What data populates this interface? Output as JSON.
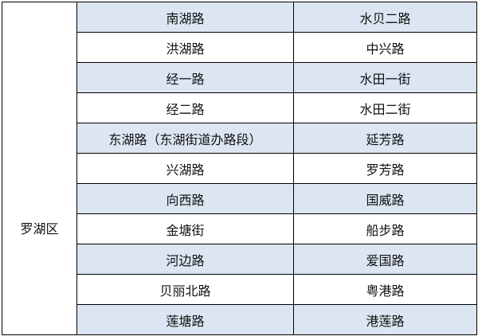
{
  "district": "罗湖区",
  "colors": {
    "alt_row": "#dce6f2",
    "border": "#000000"
  },
  "rows": [
    [
      "南湖路",
      "水贝二路"
    ],
    [
      "洪湖路",
      "中兴路"
    ],
    [
      "经一路",
      "水田一街"
    ],
    [
      "经二路",
      "水田二街"
    ],
    [
      "东湖路（东湖街道办路段）",
      "延芳路"
    ],
    [
      "兴湖路",
      "罗芳路"
    ],
    [
      "向西路",
      "国威路"
    ],
    [
      "金塘街",
      "船步路"
    ],
    [
      "河边路",
      "爱国路"
    ],
    [
      "贝丽北路",
      "粤港路"
    ],
    [
      "莲塘路",
      "港莲路"
    ]
  ]
}
